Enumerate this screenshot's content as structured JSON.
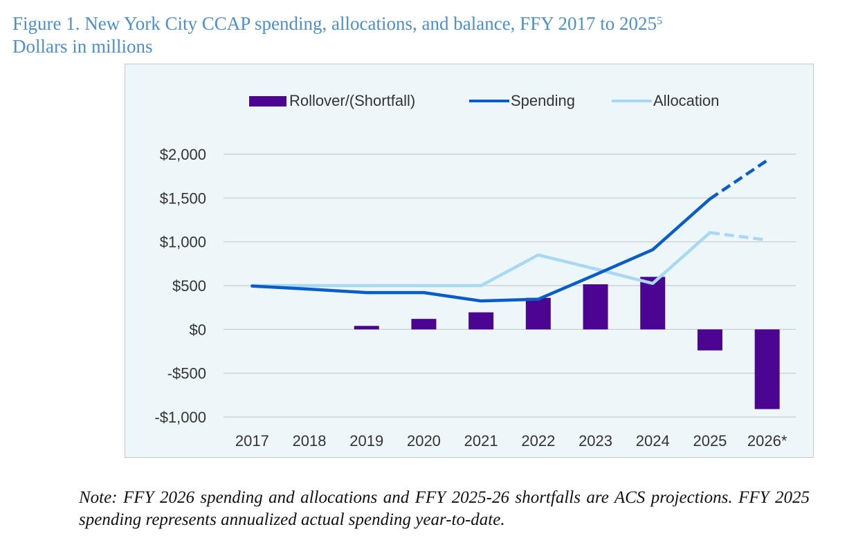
{
  "title": {
    "line1": "Figure 1. New York City CCAP spending, allocations, and balance, FFY 2017 to 2025",
    "sup": "5",
    "line2": "Dollars in millions"
  },
  "note": "Note: FFY 2026 spending and allocations and FFY 2025-26 shortfalls are ACS projections. FFY 2025 spending represents annualized actual spending year-to-date.",
  "colors": {
    "bar": "#4b0590",
    "spending": "#0a5cc8",
    "allocation": "#a8d8f2",
    "grid": "#c9c9c9",
    "background": "#edf7fa"
  },
  "chart_data": {
    "type": "bar+line",
    "categories": [
      "2017",
      "2018",
      "2019",
      "2020",
      "2021",
      "2022",
      "2023",
      "2024",
      "2025",
      "2026*"
    ],
    "ylim": [
      -1000,
      2000
    ],
    "yticks": [
      2000,
      1500,
      1000,
      500,
      0,
      -500,
      -1000
    ],
    "ytick_labels": [
      "$2,000",
      "$1,500",
      "$1,000",
      "$500",
      "$0",
      "-$500",
      "-$1,000"
    ],
    "legend": [
      "Rollover/(Shortfall)",
      "Spending",
      "Allocation"
    ],
    "series": [
      {
        "name": "Rollover/(Shortfall)",
        "kind": "bar",
        "values": [
          0,
          0,
          40,
          120,
          195,
          360,
          515,
          600,
          -240,
          -910
        ]
      },
      {
        "name": "Spending",
        "kind": "line",
        "values": [
          495,
          460,
          420,
          420,
          325,
          345,
          625,
          910,
          1490,
          1930
        ],
        "projected_from_index": 8
      },
      {
        "name": "Allocation",
        "kind": "line",
        "values": [
          500,
          500,
          500,
          500,
          500,
          850,
          690,
          525,
          1105,
          1020
        ],
        "projected_from_index": 8
      }
    ],
    "xlabel": "",
    "ylabel": ""
  }
}
